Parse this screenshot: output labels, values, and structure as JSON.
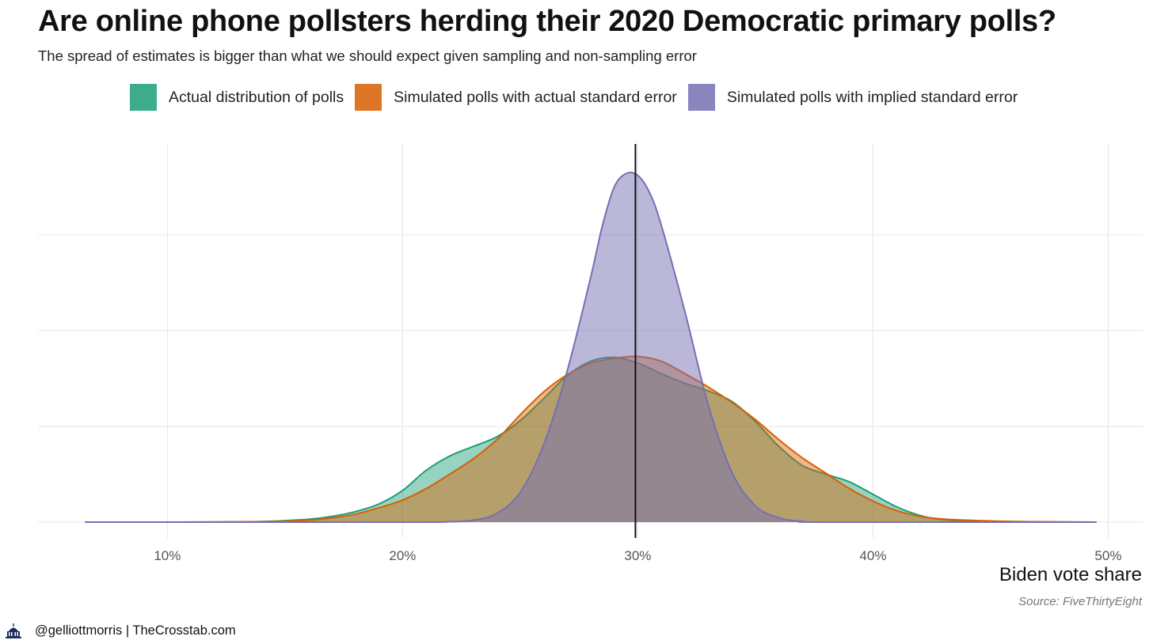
{
  "title": "Are online phone pollsters herding their 2020 Democratic primary polls?",
  "subtitle": "The spread of estimates is bigger than what we should expect given sampling and non-sampling error",
  "source": "Source: FiveThirtyEight",
  "footer": {
    "handle": "@gelliottmorris | TheCrosstab.com",
    "logo_icon": "capitol-dome-icon"
  },
  "chart_data": {
    "type": "area",
    "xlabel": "Biden vote share",
    "ylabel": "",
    "xlim": [
      4.5,
      51.5
    ],
    "ylim": [
      0,
      0.19
    ],
    "xticks": [
      10,
      20,
      30,
      40,
      50
    ],
    "xtick_labels": [
      "10%",
      "20%",
      "30%",
      "40%",
      "50%"
    ],
    "y_gridlines": [
      0,
      0.05,
      0.1,
      0.15
    ],
    "vline": 29.9,
    "grid": true,
    "legend_position": "top",
    "series": [
      {
        "name": "Actual distribution of polls",
        "fill": "#1b9e77",
        "stroke": "#1b9e77",
        "opacity": 0.45,
        "points": [
          [
            6.5,
            0
          ],
          [
            10,
            0
          ],
          [
            14,
            0.0003
          ],
          [
            16,
            0.0015
          ],
          [
            17,
            0.003
          ],
          [
            18,
            0.0055
          ],
          [
            19,
            0.0095
          ],
          [
            20,
            0.0165
          ],
          [
            21,
            0.027
          ],
          [
            22,
            0.0345
          ],
          [
            23,
            0.0395
          ],
          [
            24,
            0.0445
          ],
          [
            25,
            0.053
          ],
          [
            26,
            0.0645
          ],
          [
            27,
            0.0765
          ],
          [
            28,
            0.084
          ],
          [
            29,
            0.086
          ],
          [
            30,
            0.083
          ],
          [
            31,
            0.0775
          ],
          [
            32,
            0.0725
          ],
          [
            33,
            0.0685
          ],
          [
            34,
            0.063
          ],
          [
            35,
            0.0525
          ],
          [
            36,
            0.0395
          ],
          [
            37,
            0.0295
          ],
          [
            38,
            0.025
          ],
          [
            39,
            0.021
          ],
          [
            40,
            0.0145
          ],
          [
            41,
            0.008
          ],
          [
            42,
            0.0035
          ],
          [
            43,
            0.0013
          ],
          [
            45,
            0.0003
          ],
          [
            49.5,
            0
          ]
        ]
      },
      {
        "name": "Simulated polls with actual standard error",
        "fill": "#d95f02",
        "stroke": "#d95f02",
        "opacity": 0.45,
        "points": [
          [
            6.5,
            0
          ],
          [
            10,
            0
          ],
          [
            14,
            0.0002
          ],
          [
            16,
            0.001
          ],
          [
            17,
            0.0022
          ],
          [
            18,
            0.0042
          ],
          [
            19,
            0.0075
          ],
          [
            20,
            0.0115
          ],
          [
            21,
            0.0175
          ],
          [
            22,
            0.025
          ],
          [
            23,
            0.033
          ],
          [
            24,
            0.043
          ],
          [
            25,
            0.056
          ],
          [
            26,
            0.068
          ],
          [
            27,
            0.077
          ],
          [
            28,
            0.083
          ],
          [
            29,
            0.0855
          ],
          [
            30,
            0.0865
          ],
          [
            31,
            0.084
          ],
          [
            32,
            0.0775
          ],
          [
            33,
            0.0705
          ],
          [
            34,
            0.0625
          ],
          [
            35,
            0.0535
          ],
          [
            36,
            0.043
          ],
          [
            37,
            0.0335
          ],
          [
            38,
            0.0255
          ],
          [
            39,
            0.0175
          ],
          [
            40,
            0.011
          ],
          [
            41,
            0.006
          ],
          [
            42,
            0.003
          ],
          [
            43,
            0.0016
          ],
          [
            45,
            0.0006
          ],
          [
            47,
            0.0002
          ],
          [
            49.5,
            0
          ]
        ]
      },
      {
        "name": "Simulated polls with implied standard error",
        "fill": "#7570b3",
        "stroke": "#7570b3",
        "opacity": 0.5,
        "points": [
          [
            6.5,
            0
          ],
          [
            20,
            0
          ],
          [
            22,
            0.0002
          ],
          [
            23,
            0.001
          ],
          [
            24,
            0.0045
          ],
          [
            25,
            0.0155
          ],
          [
            26,
            0.0405
          ],
          [
            27,
            0.079
          ],
          [
            28,
            0.128
          ],
          [
            28.5,
            0.155
          ],
          [
            29,
            0.175
          ],
          [
            29.5,
            0.182
          ],
          [
            30,
            0.181
          ],
          [
            30.5,
            0.172
          ],
          [
            31,
            0.155
          ],
          [
            32,
            0.11
          ],
          [
            33,
            0.061
          ],
          [
            34,
            0.026
          ],
          [
            35,
            0.0085
          ],
          [
            36,
            0.0022
          ],
          [
            37,
            0.0004
          ],
          [
            38,
            0
          ],
          [
            49.5,
            0
          ]
        ]
      }
    ]
  }
}
